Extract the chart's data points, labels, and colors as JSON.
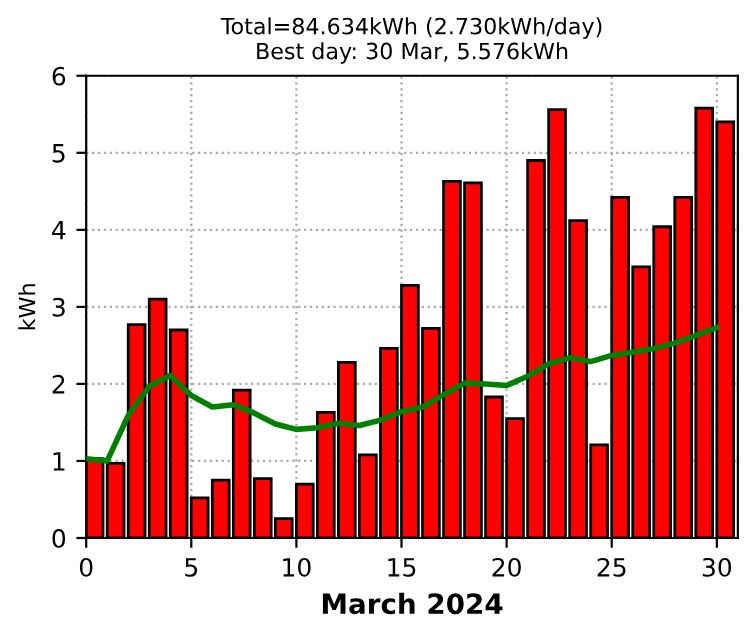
{
  "chart_data": {
    "type": "bar",
    "title": "Total=84.634kWh (2.730kWh/day)\nBest day: 30 Mar, 5.576kWh",
    "xlabel": "March 2024",
    "ylabel": "kWh",
    "series": [
      {
        "color": "#ff0000",
        "x": [
          0.4,
          1.4,
          2.4,
          3.4,
          4.4,
          5.4,
          6.4,
          7.4,
          8.4,
          9.4,
          10.4,
          11.4,
          12.4,
          13.4,
          14.4,
          15.4,
          16.4,
          17.4,
          18.4,
          19.4,
          20.4,
          21.4,
          22.4,
          23.4,
          24.4,
          25.4,
          26.4,
          27.4,
          28.4,
          29.4,
          30.4
        ],
        "values": [
          1.03,
          0.97,
          2.77,
          3.1,
          2.7,
          0.52,
          0.75,
          1.92,
          0.77,
          0.25,
          0.7,
          1.63,
          2.28,
          1.08,
          2.46,
          3.28,
          2.72,
          4.63,
          4.61,
          1.83,
          1.55,
          4.9,
          5.56,
          4.12,
          1.21,
          4.42,
          3.52,
          4.04,
          4.42,
          5.58,
          5.4
        ]
      },
      {
        "type": "line",
        "color": "#008000",
        "x": [
          0,
          1,
          2,
          3,
          4,
          5,
          6,
          7,
          8,
          9,
          10,
          11,
          12,
          13,
          14,
          15,
          16,
          17,
          18,
          19,
          20,
          21,
          22,
          23,
          24,
          25,
          26,
          27,
          28,
          29,
          30
        ],
        "values": [
          1.03,
          1.0,
          1.59,
          1.97,
          2.11,
          1.85,
          1.7,
          1.73,
          1.62,
          1.48,
          1.41,
          1.43,
          1.49,
          1.46,
          1.53,
          1.64,
          1.7,
          1.86,
          2.01,
          2.0,
          1.98,
          2.1,
          2.26,
          2.34,
          2.29,
          2.37,
          2.41,
          2.46,
          2.53,
          2.63,
          2.73
        ]
      }
    ],
    "xlim": [
      0,
      31
    ],
    "xticks": [
      0,
      5,
      10,
      15,
      20,
      25,
      30
    ],
    "ylim": [
      0,
      6
    ],
    "yticks": [
      0,
      1,
      2,
      3,
      4,
      5,
      6
    ],
    "grid": true,
    "line_style": "solid"
  }
}
